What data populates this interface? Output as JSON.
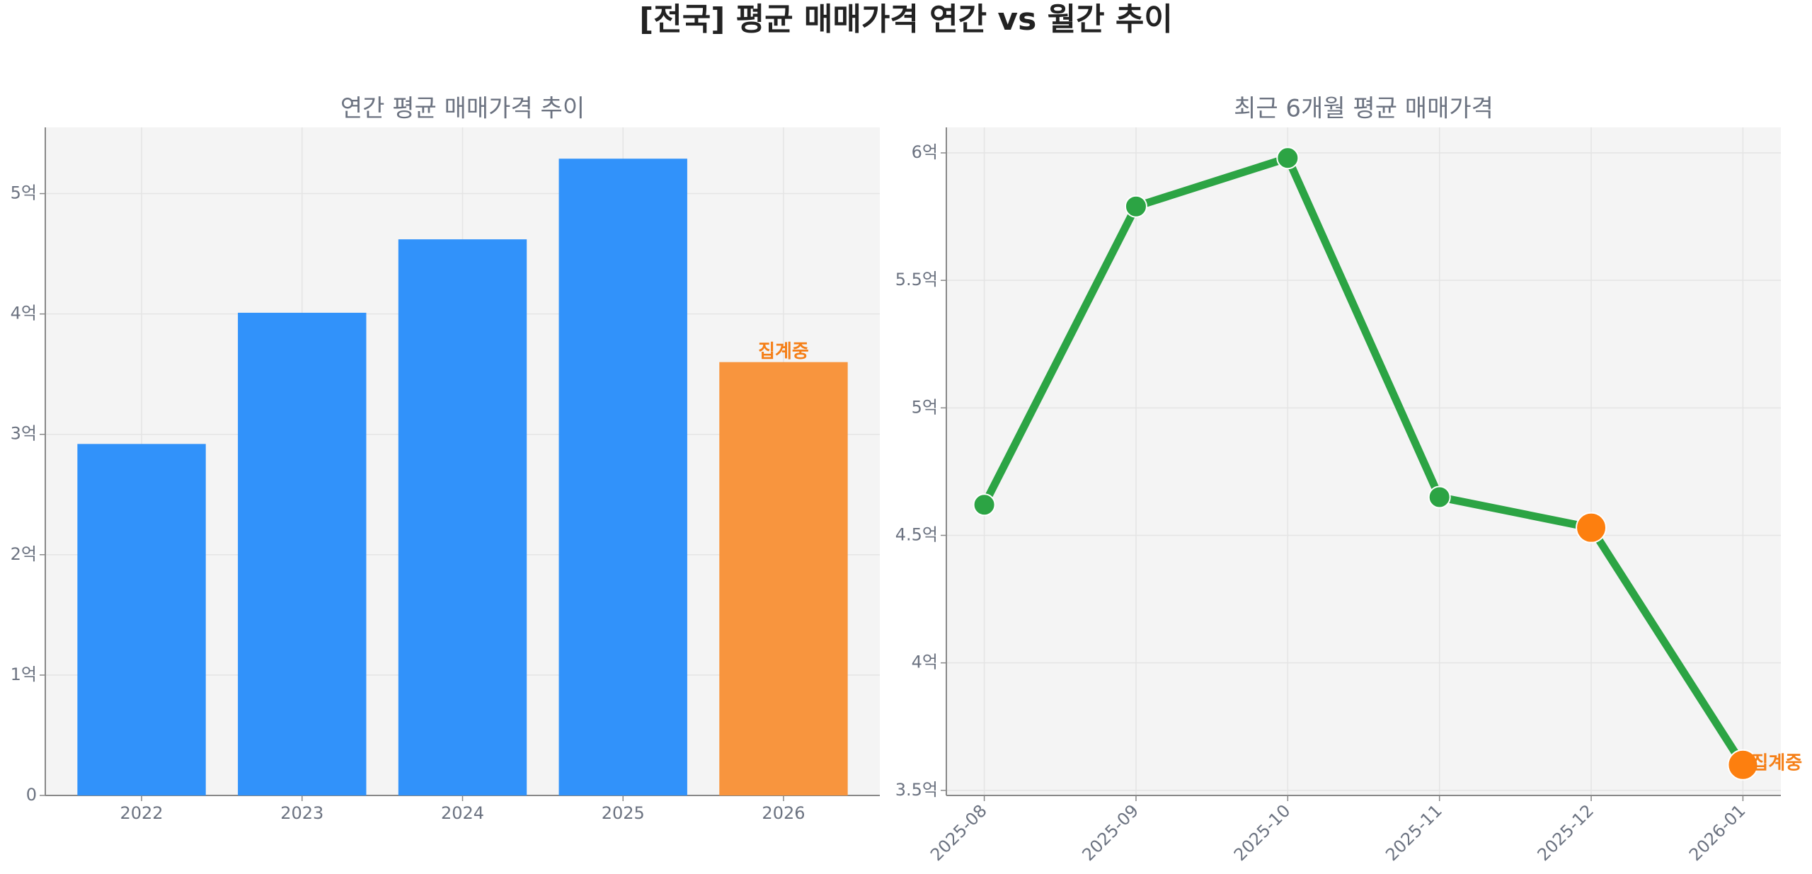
{
  "title": "[전국] 평균 매매가격 연간 vs 월간 추이",
  "chart_data": [
    {
      "type": "bar",
      "title": "연간 평균 매매가격 추이",
      "categories": [
        "2022",
        "2023",
        "2024",
        "2025",
        "2026"
      ],
      "values": [
        2.92,
        4.01,
        4.62,
        5.29,
        3.6
      ],
      "colors": [
        "#3192fa",
        "#3192fa",
        "#3192fa",
        "#3192fa",
        "#f8953e"
      ],
      "ylim": [
        0,
        5.55
      ],
      "yticks": [
        0,
        {
          "value": 1,
          "label": "1억"
        },
        {
          "value": 2,
          "label": "2억"
        },
        {
          "value": 3,
          "label": "3억"
        },
        {
          "value": 4,
          "label": "4억"
        },
        {
          "value": 5,
          "label": "5억"
        }
      ],
      "grid": true,
      "annotation": {
        "text": "집계중",
        "category": "2026",
        "color": "#f57f17"
      }
    },
    {
      "type": "line",
      "title": "최근 6개월 평균 매매가격",
      "categories": [
        "2025-08",
        "2025-09",
        "2025-10",
        "2025-11",
        "2025-12",
        "2026-01"
      ],
      "values": [
        4.62,
        5.79,
        5.98,
        4.65,
        4.53,
        3.6
      ],
      "color": "#2ca444",
      "point_colors": [
        "#2ca444",
        "#2ca444",
        "#2ca444",
        "#2ca444",
        "#fd7f0f",
        "#fd7f0f"
      ],
      "ylim": [
        3.48,
        6.1
      ],
      "yticks": [
        {
          "value": 3.5,
          "label": "3.5억"
        },
        {
          "value": 4,
          "label": "4억"
        },
        {
          "value": 4.5,
          "label": "4.5억"
        },
        {
          "value": 5,
          "label": "5억"
        },
        {
          "value": 5.5,
          "label": "5.5억"
        },
        {
          "value": 6,
          "label": "6억"
        }
      ],
      "grid": true,
      "annotation": {
        "text": "집계중",
        "category": "2026-01",
        "color": "#f57f17"
      }
    }
  ]
}
